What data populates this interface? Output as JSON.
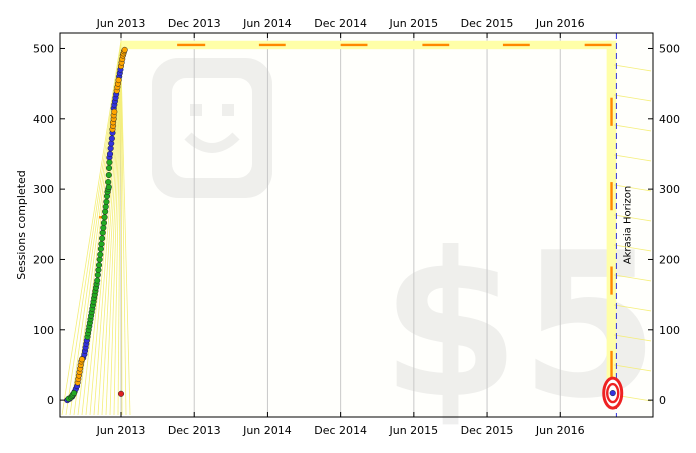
{
  "chart_data": {
    "type": "scatter",
    "title": "",
    "xlabel": "",
    "ylabel": "Sessions completed",
    "ylim": [
      -24,
      522
    ],
    "xlim": [
      0,
      48.6
    ],
    "x_unit": "months since Jan 2013",
    "y_ticks": [
      0,
      100,
      200,
      300,
      400,
      500
    ],
    "y_tick_labels": [
      "0",
      "100",
      "200",
      "300",
      "400",
      "500"
    ],
    "x_ticks": [
      5,
      11,
      17,
      23,
      29,
      35,
      41
    ],
    "x_tick_labels": [
      "Jun 2013",
      "Dec 2013",
      "Jun 2014",
      "Dec 2014",
      "Jun 2015",
      "Dec 2015",
      "Jun 2016"
    ],
    "grid": true,
    "watermark": {
      "amount": "$5"
    },
    "horizon": {
      "label": "Akrasia Horizon",
      "x": 45.6
    },
    "goal_total": 505,
    "target_value": 10,
    "target_x": 45.3,
    "stray_point": {
      "x": 5.0,
      "y": 9
    },
    "road_segments": [
      {
        "x0": 9.6,
        "x1": 11.9,
        "y": 505
      },
      {
        "x0": 16.3,
        "x1": 18.5,
        "y": 505
      },
      {
        "x0": 23.0,
        "x1": 25.2,
        "y": 505
      },
      {
        "x0": 29.7,
        "x1": 31.9,
        "y": 505
      },
      {
        "x0": 36.3,
        "x1": 38.5,
        "y": 505
      },
      {
        "x0": 43.0,
        "x1": 45.2,
        "y": 505
      },
      {
        "x": 45.2,
        "y0": 390,
        "y1": 430
      },
      {
        "x": 45.2,
        "y0": 270,
        "y1": 310
      },
      {
        "x": 45.2,
        "y0": 150,
        "y1": 190
      },
      {
        "x": 45.2,
        "y0": 30,
        "y1": 70
      },
      {
        "x0": 3.2,
        "x1": 3.9,
        "y": 260
      }
    ],
    "series": [
      {
        "name": "blue",
        "color": "#3333dd",
        "points": [
          [
            0.6,
            0
          ],
          [
            0.8,
            2
          ],
          [
            1.0,
            5
          ],
          [
            1.1,
            8
          ],
          [
            1.2,
            12
          ],
          [
            1.3,
            16
          ],
          [
            1.4,
            20
          ],
          [
            1.9,
            60
          ],
          [
            2.0,
            65
          ],
          [
            2.05,
            70
          ],
          [
            2.1,
            75
          ],
          [
            2.15,
            80
          ],
          [
            2.2,
            85
          ],
          [
            4.4,
            415
          ],
          [
            4.45,
            420
          ],
          [
            4.5,
            425
          ],
          [
            4.55,
            430
          ],
          [
            4.6,
            435
          ],
          [
            4.05,
            345
          ],
          [
            4.1,
            350
          ],
          [
            4.15,
            358
          ],
          [
            4.2,
            365
          ],
          [
            4.25,
            372
          ],
          [
            4.3,
            380
          ],
          [
            4.85,
            460
          ],
          [
            4.9,
            465
          ],
          [
            4.95,
            470
          ]
        ]
      },
      {
        "name": "green",
        "color": "#22aa22",
        "points": [
          [
            0.7,
            2
          ],
          [
            0.9,
            4
          ],
          [
            1.0,
            6
          ],
          [
            1.05,
            8
          ],
          [
            1.15,
            10
          ],
          [
            2.25,
            90
          ],
          [
            2.3,
            95
          ],
          [
            2.35,
            100
          ],
          [
            2.4,
            105
          ],
          [
            2.45,
            110
          ],
          [
            2.5,
            115
          ],
          [
            2.55,
            120
          ],
          [
            2.6,
            125
          ],
          [
            2.65,
            130
          ],
          [
            2.7,
            135
          ],
          [
            2.75,
            140
          ],
          [
            2.8,
            145
          ],
          [
            2.85,
            150
          ],
          [
            2.9,
            155
          ],
          [
            2.95,
            160
          ],
          [
            3.0,
            165
          ],
          [
            3.05,
            170
          ],
          [
            3.1,
            178
          ],
          [
            3.15,
            185
          ],
          [
            3.2,
            192
          ],
          [
            3.25,
            200
          ],
          [
            3.3,
            207
          ],
          [
            3.35,
            215
          ],
          [
            3.4,
            222
          ],
          [
            3.45,
            230
          ],
          [
            3.5,
            238
          ],
          [
            3.55,
            245
          ],
          [
            3.6,
            252
          ],
          [
            3.65,
            260
          ],
          [
            3.7,
            268
          ],
          [
            3.75,
            275
          ],
          [
            3.8,
            282
          ],
          [
            3.85,
            290
          ],
          [
            3.9,
            296
          ],
          [
            3.95,
            300
          ],
          [
            4.0,
            303
          ],
          [
            3.95,
            310
          ],
          [
            4.0,
            320
          ],
          [
            4.02,
            330
          ],
          [
            4.05,
            338
          ]
        ]
      },
      {
        "name": "orange",
        "color": "#ffa500",
        "points": [
          [
            1.45,
            25
          ],
          [
            1.5,
            30
          ],
          [
            1.55,
            35
          ],
          [
            1.6,
            40
          ],
          [
            1.65,
            45
          ],
          [
            1.7,
            50
          ],
          [
            1.75,
            55
          ],
          [
            1.8,
            58
          ],
          [
            4.3,
            385
          ],
          [
            4.35,
            390
          ],
          [
            4.35,
            395
          ],
          [
            4.4,
            400
          ],
          [
            4.4,
            405
          ],
          [
            4.45,
            410
          ],
          [
            4.65,
            440
          ],
          [
            4.7,
            445
          ],
          [
            4.75,
            450
          ],
          [
            4.8,
            455
          ],
          [
            5.0,
            475
          ],
          [
            5.05,
            480
          ],
          [
            5.1,
            485
          ],
          [
            5.15,
            490
          ],
          [
            5.2,
            493
          ],
          [
            5.25,
            496
          ],
          [
            5.3,
            498
          ]
        ]
      }
    ]
  }
}
